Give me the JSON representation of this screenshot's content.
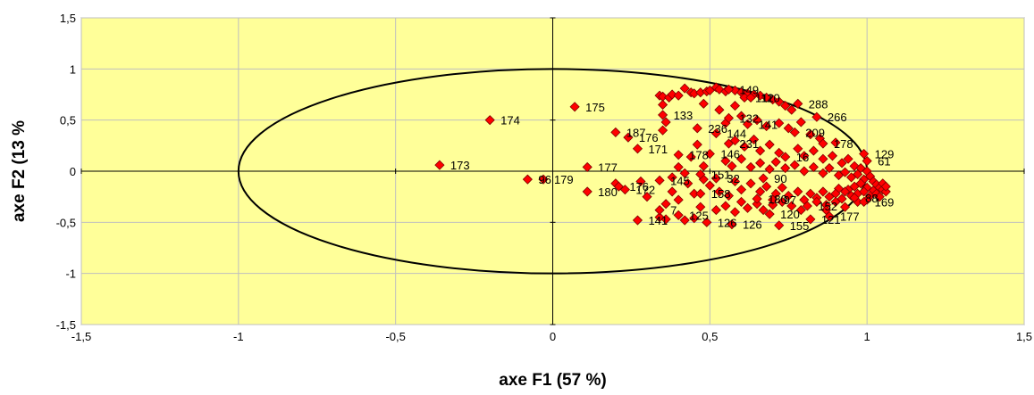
{
  "chart_data": {
    "type": "scatter",
    "title": "",
    "xlabel": "axe F1 (57 %)",
    "ylabel": "axe F2 (13 %",
    "xlim": [
      -1.5,
      1.5
    ],
    "ylim": [
      -1.5,
      1.5
    ],
    "xticks": [
      -1.5,
      -1,
      -0.5,
      0,
      0.5,
      1,
      1.5
    ],
    "yticks": [
      -1.5,
      -1,
      -0.5,
      0,
      0.5,
      1,
      1.5
    ],
    "xtick_labels": [
      "-1,5",
      "-1",
      "-0,5",
      "0",
      "0,5",
      "1",
      "1,5"
    ],
    "ytick_labels": [
      "-1,5",
      "-1",
      "-0,5",
      "0",
      "0,5",
      "1",
      "1,5"
    ],
    "grid": true,
    "plot_background": "#FFFF99",
    "marker_color": "#FF0000",
    "marker_shape": "diamond",
    "reference_circle": {
      "center": [
        0,
        0
      ],
      "radius": 1
    },
    "points": [
      {
        "label": "174",
        "x": -0.2,
        "y": 0.5
      },
      {
        "label": "173",
        "x": -0.36,
        "y": 0.06
      },
      {
        "label": "175",
        "x": 0.07,
        "y": 0.63
      },
      {
        "label": "96",
        "x": -0.08,
        "y": -0.08
      },
      {
        "label": "179",
        "x": -0.03,
        "y": -0.08
      },
      {
        "label": "177",
        "x": 0.11,
        "y": 0.04
      },
      {
        "label": "180",
        "x": 0.11,
        "y": -0.2
      },
      {
        "label": "176",
        "x": 0.21,
        "y": -0.15
      },
      {
        "label": "187",
        "x": 0.2,
        "y": 0.38
      },
      {
        "label": "176",
        "x": 0.24,
        "y": 0.33
      },
      {
        "label": "171",
        "x": 0.27,
        "y": 0.22
      },
      {
        "label": "172",
        "x": 0.23,
        "y": -0.18
      },
      {
        "label": "141",
        "x": 0.27,
        "y": -0.48
      },
      {
        "label": "145",
        "x": 0.34,
        "y": -0.09
      },
      {
        "label": "7",
        "x": 0.34,
        "y": -0.38
      },
      {
        "label": "178",
        "x": 0.4,
        "y": 0.16
      },
      {
        "label": "236",
        "x": 0.46,
        "y": 0.42
      },
      {
        "label": "133",
        "x": 0.35,
        "y": 0.55
      },
      {
        "label": "125",
        "x": 0.4,
        "y": -0.43
      },
      {
        "label": "126",
        "x": 0.49,
        "y": -0.5
      },
      {
        "label": "158",
        "x": 0.47,
        "y": -0.22
      },
      {
        "label": "146",
        "x": 0.5,
        "y": 0.17
      },
      {
        "label": "144",
        "x": 0.52,
        "y": 0.37
      },
      {
        "label": "231",
        "x": 0.56,
        "y": 0.27
      },
      {
        "label": "132",
        "x": 0.56,
        "y": 0.52
      },
      {
        "label": "112",
        "x": 0.61,
        "y": 0.72
      },
      {
        "label": "149",
        "x": 0.56,
        "y": 0.8
      },
      {
        "label": "110",
        "x": 0.63,
        "y": 0.72
      },
      {
        "label": "126",
        "x": 0.57,
        "y": -0.52
      },
      {
        "label": "120",
        "x": 0.69,
        "y": -0.42
      },
      {
        "label": "155",
        "x": 0.72,
        "y": -0.53
      },
      {
        "label": "121",
        "x": 0.82,
        "y": -0.47
      },
      {
        "label": "177",
        "x": 0.88,
        "y": -0.44
      },
      {
        "label": "288",
        "x": 0.78,
        "y": 0.66
      },
      {
        "label": "266",
        "x": 0.84,
        "y": 0.53
      },
      {
        "label": "209",
        "x": 0.77,
        "y": 0.38
      },
      {
        "label": "178",
        "x": 0.86,
        "y": 0.27
      },
      {
        "label": "129",
        "x": 0.99,
        "y": 0.17
      },
      {
        "label": "61",
        "x": 1.0,
        "y": 0.1
      },
      {
        "label": "169",
        "x": 0.99,
        "y": -0.3
      },
      {
        "label": "88",
        "x": 0.96,
        "y": -0.26
      },
      {
        "label": "32",
        "x": 0.52,
        "y": -0.07
      },
      {
        "label": "151",
        "x": 0.47,
        "y": -0.03
      },
      {
        "label": "90",
        "x": 0.67,
        "y": -0.07
      },
      {
        "label": "97",
        "x": 0.7,
        "y": -0.28
      },
      {
        "label": "180",
        "x": 0.65,
        "y": -0.27
      },
      {
        "label": "152",
        "x": 0.81,
        "y": -0.34
      },
      {
        "label": "141",
        "x": 0.62,
        "y": 0.46
      },
      {
        "label": "16",
        "x": 0.74,
        "y": 0.14
      }
    ],
    "unlabeled_points": [
      [
        0.34,
        0.74
      ],
      [
        0.35,
        0.73
      ],
      [
        0.37,
        0.72
      ],
      [
        0.38,
        0.75
      ],
      [
        0.4,
        0.74
      ],
      [
        0.42,
        0.81
      ],
      [
        0.44,
        0.77
      ],
      [
        0.45,
        0.76
      ],
      [
        0.47,
        0.77
      ],
      [
        0.49,
        0.78
      ],
      [
        0.5,
        0.79
      ],
      [
        0.52,
        0.82
      ],
      [
        0.53,
        0.8
      ],
      [
        0.55,
        0.78
      ],
      [
        0.58,
        0.79
      ],
      [
        0.6,
        0.77
      ],
      [
        0.62,
        0.76
      ],
      [
        0.64,
        0.75
      ],
      [
        0.66,
        0.74
      ],
      [
        0.68,
        0.72
      ],
      [
        0.7,
        0.7
      ],
      [
        0.72,
        0.68
      ],
      [
        0.74,
        0.64
      ],
      [
        0.76,
        0.6
      ],
      [
        0.35,
        0.65
      ],
      [
        0.36,
        0.48
      ],
      [
        0.35,
        0.4
      ],
      [
        0.48,
        0.66
      ],
      [
        0.53,
        0.6
      ],
      [
        0.58,
        0.64
      ],
      [
        0.55,
        0.47
      ],
      [
        0.6,
        0.54
      ],
      [
        0.65,
        0.5
      ],
      [
        0.68,
        0.44
      ],
      [
        0.72,
        0.47
      ],
      [
        0.75,
        0.42
      ],
      [
        0.79,
        0.48
      ],
      [
        0.82,
        0.36
      ],
      [
        0.85,
        0.32
      ],
      [
        0.9,
        0.28
      ],
      [
        0.58,
        0.3
      ],
      [
        0.61,
        0.24
      ],
      [
        0.64,
        0.31
      ],
      [
        0.66,
        0.2
      ],
      [
        0.69,
        0.26
      ],
      [
        0.72,
        0.18
      ],
      [
        0.78,
        0.22
      ],
      [
        0.8,
        0.15
      ],
      [
        0.83,
        0.2
      ],
      [
        0.86,
        0.12
      ],
      [
        0.89,
        0.15
      ],
      [
        0.92,
        0.08
      ],
      [
        0.94,
        0.12
      ],
      [
        0.96,
        0.05
      ],
      [
        0.98,
        0.03
      ],
      [
        1.0,
        0.0
      ],
      [
        0.55,
        0.1
      ],
      [
        0.57,
        0.05
      ],
      [
        0.6,
        0.12
      ],
      [
        0.63,
        0.04
      ],
      [
        0.66,
        0.08
      ],
      [
        0.69,
        0.02
      ],
      [
        0.71,
        0.09
      ],
      [
        0.74,
        0.03
      ],
      [
        0.77,
        0.06
      ],
      [
        0.8,
        0.0
      ],
      [
        0.83,
        0.04
      ],
      [
        0.86,
        -0.02
      ],
      [
        0.88,
        0.03
      ],
      [
        0.91,
        -0.04
      ],
      [
        0.93,
        -0.01
      ],
      [
        0.95,
        -0.06
      ],
      [
        0.97,
        -0.03
      ],
      [
        0.99,
        -0.08
      ],
      [
        1.01,
        -0.05
      ],
      [
        1.02,
        -0.1
      ],
      [
        1.03,
        -0.13
      ],
      [
        1.04,
        -0.16
      ],
      [
        1.05,
        -0.18
      ],
      [
        1.06,
        -0.2
      ],
      [
        1.02,
        -0.19
      ],
      [
        1.0,
        -0.16
      ],
      [
        0.98,
        -0.12
      ],
      [
        0.96,
        -0.15
      ],
      [
        0.94,
        -0.18
      ],
      [
        0.93,
        -0.2
      ],
      [
        0.91,
        -0.17
      ],
      [
        0.9,
        -0.22
      ],
      [
        0.88,
        -0.25
      ],
      [
        0.86,
        -0.2
      ],
      [
        0.84,
        -0.26
      ],
      [
        0.82,
        -0.22
      ],
      [
        0.8,
        -0.28
      ],
      [
        0.78,
        -0.2
      ],
      [
        0.75,
        -0.24
      ],
      [
        0.73,
        -0.16
      ],
      [
        0.71,
        -0.22
      ],
      [
        0.68,
        -0.15
      ],
      [
        0.66,
        -0.2
      ],
      [
        0.63,
        -0.12
      ],
      [
        0.6,
        -0.18
      ],
      [
        0.58,
        -0.1
      ],
      [
        0.56,
        -0.24
      ],
      [
        0.53,
        -0.2
      ],
      [
        0.5,
        -0.14
      ],
      [
        0.48,
        -0.08
      ],
      [
        0.45,
        -0.22
      ],
      [
        0.43,
        -0.12
      ],
      [
        0.4,
        -0.28
      ],
      [
        0.38,
        -0.2
      ],
      [
        0.36,
        -0.32
      ],
      [
        0.34,
        -0.45
      ],
      [
        0.36,
        -0.47
      ],
      [
        0.42,
        -0.48
      ],
      [
        0.45,
        -0.46
      ],
      [
        0.47,
        -0.35
      ],
      [
        0.52,
        -0.38
      ],
      [
        0.55,
        -0.34
      ],
      [
        0.58,
        -0.4
      ],
      [
        0.6,
        -0.3
      ],
      [
        0.62,
        -0.36
      ],
      [
        0.65,
        -0.32
      ],
      [
        0.67,
        -0.38
      ],
      [
        0.7,
        -0.33
      ],
      [
        0.73,
        -0.3
      ],
      [
        0.76,
        -0.34
      ],
      [
        0.79,
        -0.38
      ],
      [
        0.84,
        -0.3
      ],
      [
        0.87,
        -0.33
      ],
      [
        0.9,
        -0.3
      ],
      [
        0.92,
        -0.27
      ],
      [
        0.95,
        -0.24
      ],
      [
        0.97,
        -0.22
      ],
      [
        0.99,
        -0.2
      ],
      [
        1.01,
        -0.24
      ],
      [
        1.03,
        -0.22
      ],
      [
        1.05,
        -0.12
      ],
      [
        1.06,
        -0.15
      ],
      [
        1.04,
        -0.25
      ],
      [
        1.0,
        -0.28
      ],
      [
        0.97,
        -0.3
      ],
      [
        0.93,
        -0.35
      ],
      [
        0.87,
        -0.38
      ],
      [
        0.46,
        0.26
      ],
      [
        0.44,
        0.14
      ],
      [
        0.48,
        0.05
      ],
      [
        0.4,
        0.04
      ],
      [
        0.42,
        -0.02
      ],
      [
        0.38,
        -0.06
      ],
      [
        0.3,
        -0.25
      ],
      [
        0.28,
        -0.1
      ],
      [
        0.2,
        -0.12
      ]
    ]
  }
}
